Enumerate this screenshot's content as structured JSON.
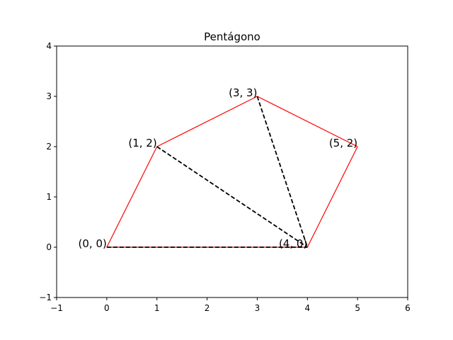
{
  "chart_data": {
    "type": "line",
    "title": "Pentágono",
    "xlabel": "",
    "ylabel": "",
    "xlim": [
      -1,
      6
    ],
    "ylim": [
      -1,
      4
    ],
    "xticks": [
      -1,
      0,
      1,
      2,
      3,
      4,
      5,
      6
    ],
    "yticks": [
      -1,
      0,
      1,
      2,
      3,
      4
    ],
    "xtick_labels": [
      "−1",
      "0",
      "1",
      "2",
      "3",
      "4",
      "5",
      "6"
    ],
    "ytick_labels": [
      "−1",
      "0",
      "1",
      "2",
      "3",
      "4"
    ],
    "grid": false,
    "polygon": {
      "color": "#ff0000",
      "vertices": [
        [
          0,
          0
        ],
        [
          1,
          2
        ],
        [
          3,
          3
        ],
        [
          5,
          2
        ],
        [
          4,
          0
        ]
      ]
    },
    "diagonals": {
      "color": "#000000",
      "style": "dashed",
      "segments": [
        [
          [
            0,
            0
          ],
          [
            4,
            0
          ]
        ],
        [
          [
            1,
            2
          ],
          [
            4,
            0
          ]
        ],
        [
          [
            3,
            3
          ],
          [
            4,
            0
          ]
        ]
      ]
    },
    "annotations": [
      {
        "text": "(0, 0)",
        "x": 0,
        "y": 0
      },
      {
        "text": "(1, 2)",
        "x": 1,
        "y": 2
      },
      {
        "text": "(3, 3)",
        "x": 3,
        "y": 3
      },
      {
        "text": "(5, 2)",
        "x": 5,
        "y": 2
      },
      {
        "text": "(4, 0)",
        "x": 4,
        "y": 0
      }
    ]
  }
}
